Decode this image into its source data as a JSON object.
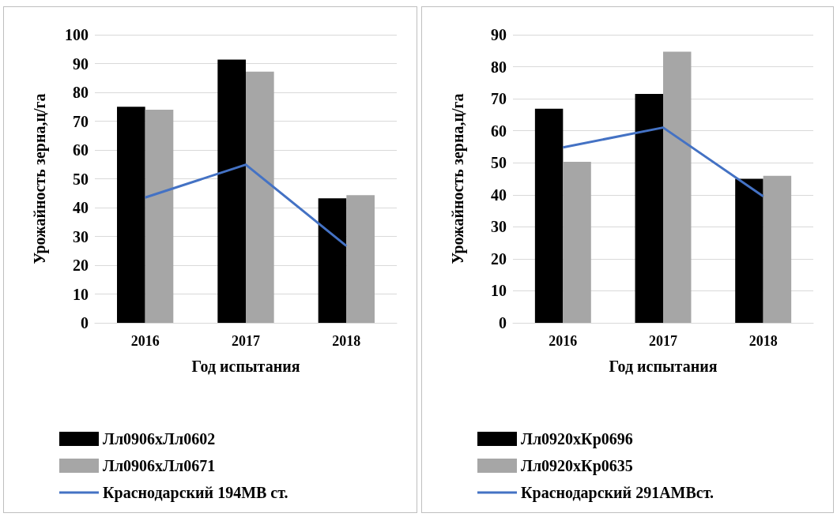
{
  "chart_data": [
    {
      "type": "bar",
      "xlabel": "Год испытания",
      "ylabel": "Урожайность зерна,ц/га",
      "categories": [
        "2016",
        "2017",
        "2018"
      ],
      "series": [
        {
          "name": "Лл0906хЛл0602",
          "color": "#000000",
          "values": [
            75,
            91.4,
            43.2
          ]
        },
        {
          "name": "Лл0906хЛл0671",
          "color": "#a6a6a6",
          "values": [
            74,
            87.2,
            44.3
          ]
        },
        {
          "name": "Краснодарский 194МВ ст.",
          "type": "line",
          "color": "#4472c4",
          "values": [
            43.5,
            54.9,
            26.7
          ]
        }
      ],
      "ylim": [
        0,
        100
      ],
      "yticks": [
        0,
        10,
        20,
        30,
        40,
        50,
        60,
        70,
        80,
        90,
        100
      ],
      "grid": "y",
      "legend": "bottom",
      "marker": "none"
    },
    {
      "type": "bar",
      "xlabel": "Год испытания",
      "ylabel": "Урожайность зерна,ц/га",
      "categories": [
        "2016",
        "2017",
        "2018"
      ],
      "series": [
        {
          "name": "Лл0920хКр0696",
          "color": "#000000",
          "values": [
            66.9,
            71.5,
            45
          ]
        },
        {
          "name": "Лл0920хКр0635",
          "color": "#a6a6a6",
          "values": [
            50.3,
            84.7,
            45.9
          ]
        },
        {
          "name": "Краснодарский 291АМВст.",
          "type": "line",
          "color": "#4472c4",
          "values": [
            54.8,
            61,
            39.5
          ]
        }
      ],
      "ylim": [
        0,
        90
      ],
      "yticks": [
        0,
        10,
        20,
        30,
        40,
        50,
        60,
        70,
        80,
        90
      ],
      "grid": "y",
      "legend": "bottom",
      "marker": "none"
    }
  ]
}
